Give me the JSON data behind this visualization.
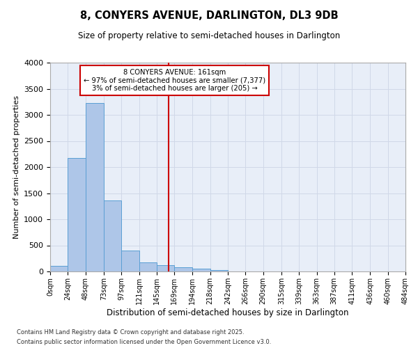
{
  "title": "8, CONYERS AVENUE, DARLINGTON, DL3 9DB",
  "subtitle": "Size of property relative to semi-detached houses in Darlington",
  "xlabel": "Distribution of semi-detached houses by size in Darlington",
  "ylabel": "Number of semi-detached properties",
  "footnote1": "Contains HM Land Registry data © Crown copyright and database right 2025.",
  "footnote2": "Contains public sector information licensed under the Open Government Licence v3.0.",
  "annotation_line1": "8 CONYERS AVENUE: 161sqm",
  "annotation_line2": "← 97% of semi-detached houses are smaller (7,377)",
  "annotation_line3": "3% of semi-detached houses are larger (205) →",
  "property_size": 161,
  "bin_edges": [
    0,
    24,
    48,
    73,
    97,
    121,
    145,
    169,
    194,
    218,
    242,
    266,
    290,
    315,
    339,
    363,
    387,
    411,
    436,
    460,
    484
  ],
  "bin_labels": [
    "0sqm",
    "24sqm",
    "48sqm",
    "73sqm",
    "97sqm",
    "121sqm",
    "145sqm",
    "169sqm",
    "194sqm",
    "218sqm",
    "242sqm",
    "266sqm",
    "290sqm",
    "315sqm",
    "339sqm",
    "363sqm",
    "387sqm",
    "411sqm",
    "436sqm",
    "460sqm",
    "484sqm"
  ],
  "counts": [
    110,
    2170,
    3230,
    1360,
    400,
    175,
    115,
    75,
    55,
    30,
    0,
    0,
    0,
    0,
    0,
    0,
    0,
    0,
    0,
    0
  ],
  "bar_color": "#aec6e8",
  "bar_edge_color": "#5a9fd4",
  "vline_color": "#cc0000",
  "vline_x": 161,
  "annotation_box_color": "#cc0000",
  "grid_color": "#d0d8e8",
  "background_color": "#e8eef8",
  "ylim": [
    0,
    4000
  ],
  "yticks": [
    0,
    500,
    1000,
    1500,
    2000,
    2500,
    3000,
    3500,
    4000
  ]
}
